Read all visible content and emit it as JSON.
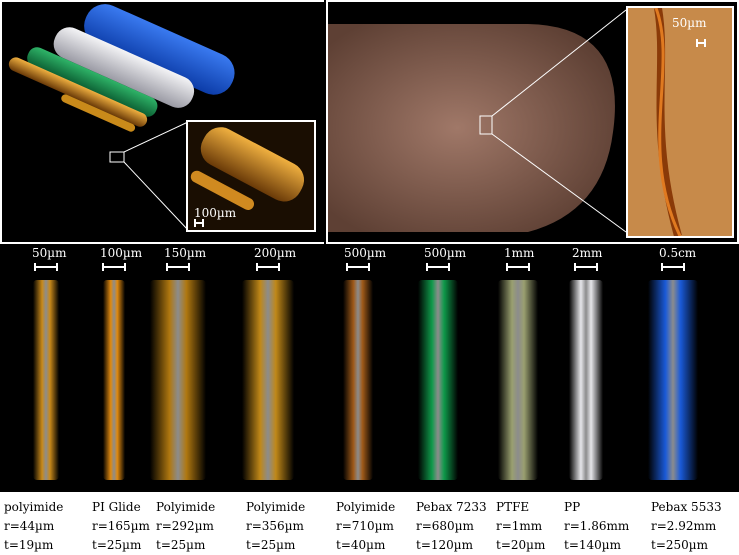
{
  "top_left": {
    "scale_label": "100µm"
  },
  "top_right": {
    "scale_label": "50µm"
  },
  "samples": [
    {
      "scale": "50µm",
      "name": "polyimide",
      "r": "r=44µm",
      "t": "t=19µm",
      "color": "#c98a1a"
    },
    {
      "scale": "100µm",
      "name": "PI Glide",
      "r": "r=165µm",
      "t": "t=25µm",
      "color": "#e08a10"
    },
    {
      "scale": "150µm",
      "name": "Polyimide",
      "r": "r=292µm",
      "t": "t=25µm",
      "color": "#b07810"
    },
    {
      "scale": "200µm",
      "name": "Polyimide",
      "r": "r=356µm",
      "t": "t=25µm",
      "color": "#c08818"
    },
    {
      "scale": "500µm",
      "name": "Polyimide",
      "r": "r=710µm",
      "t": "t=40µm",
      "color": "#a05a18"
    },
    {
      "scale": "500µm",
      "name": "Pebax 7233",
      "r": "r=680µm",
      "t": "t=120µm",
      "color": "#0f9a4a"
    },
    {
      "scale": "1mm",
      "name": "PTFE",
      "r": "r=1mm",
      "t": "t=20µm",
      "color": "#9aa070"
    },
    {
      "scale": "2mm",
      "name": "PP",
      "r": "r=1.86mm",
      "t": "t=140µm",
      "color": "#e6e6ea"
    },
    {
      "scale": "0.5cm",
      "name": "Pebax 5533",
      "r": "r=2.92mm",
      "t": "t=250µm",
      "color": "#1a5ad8"
    }
  ]
}
